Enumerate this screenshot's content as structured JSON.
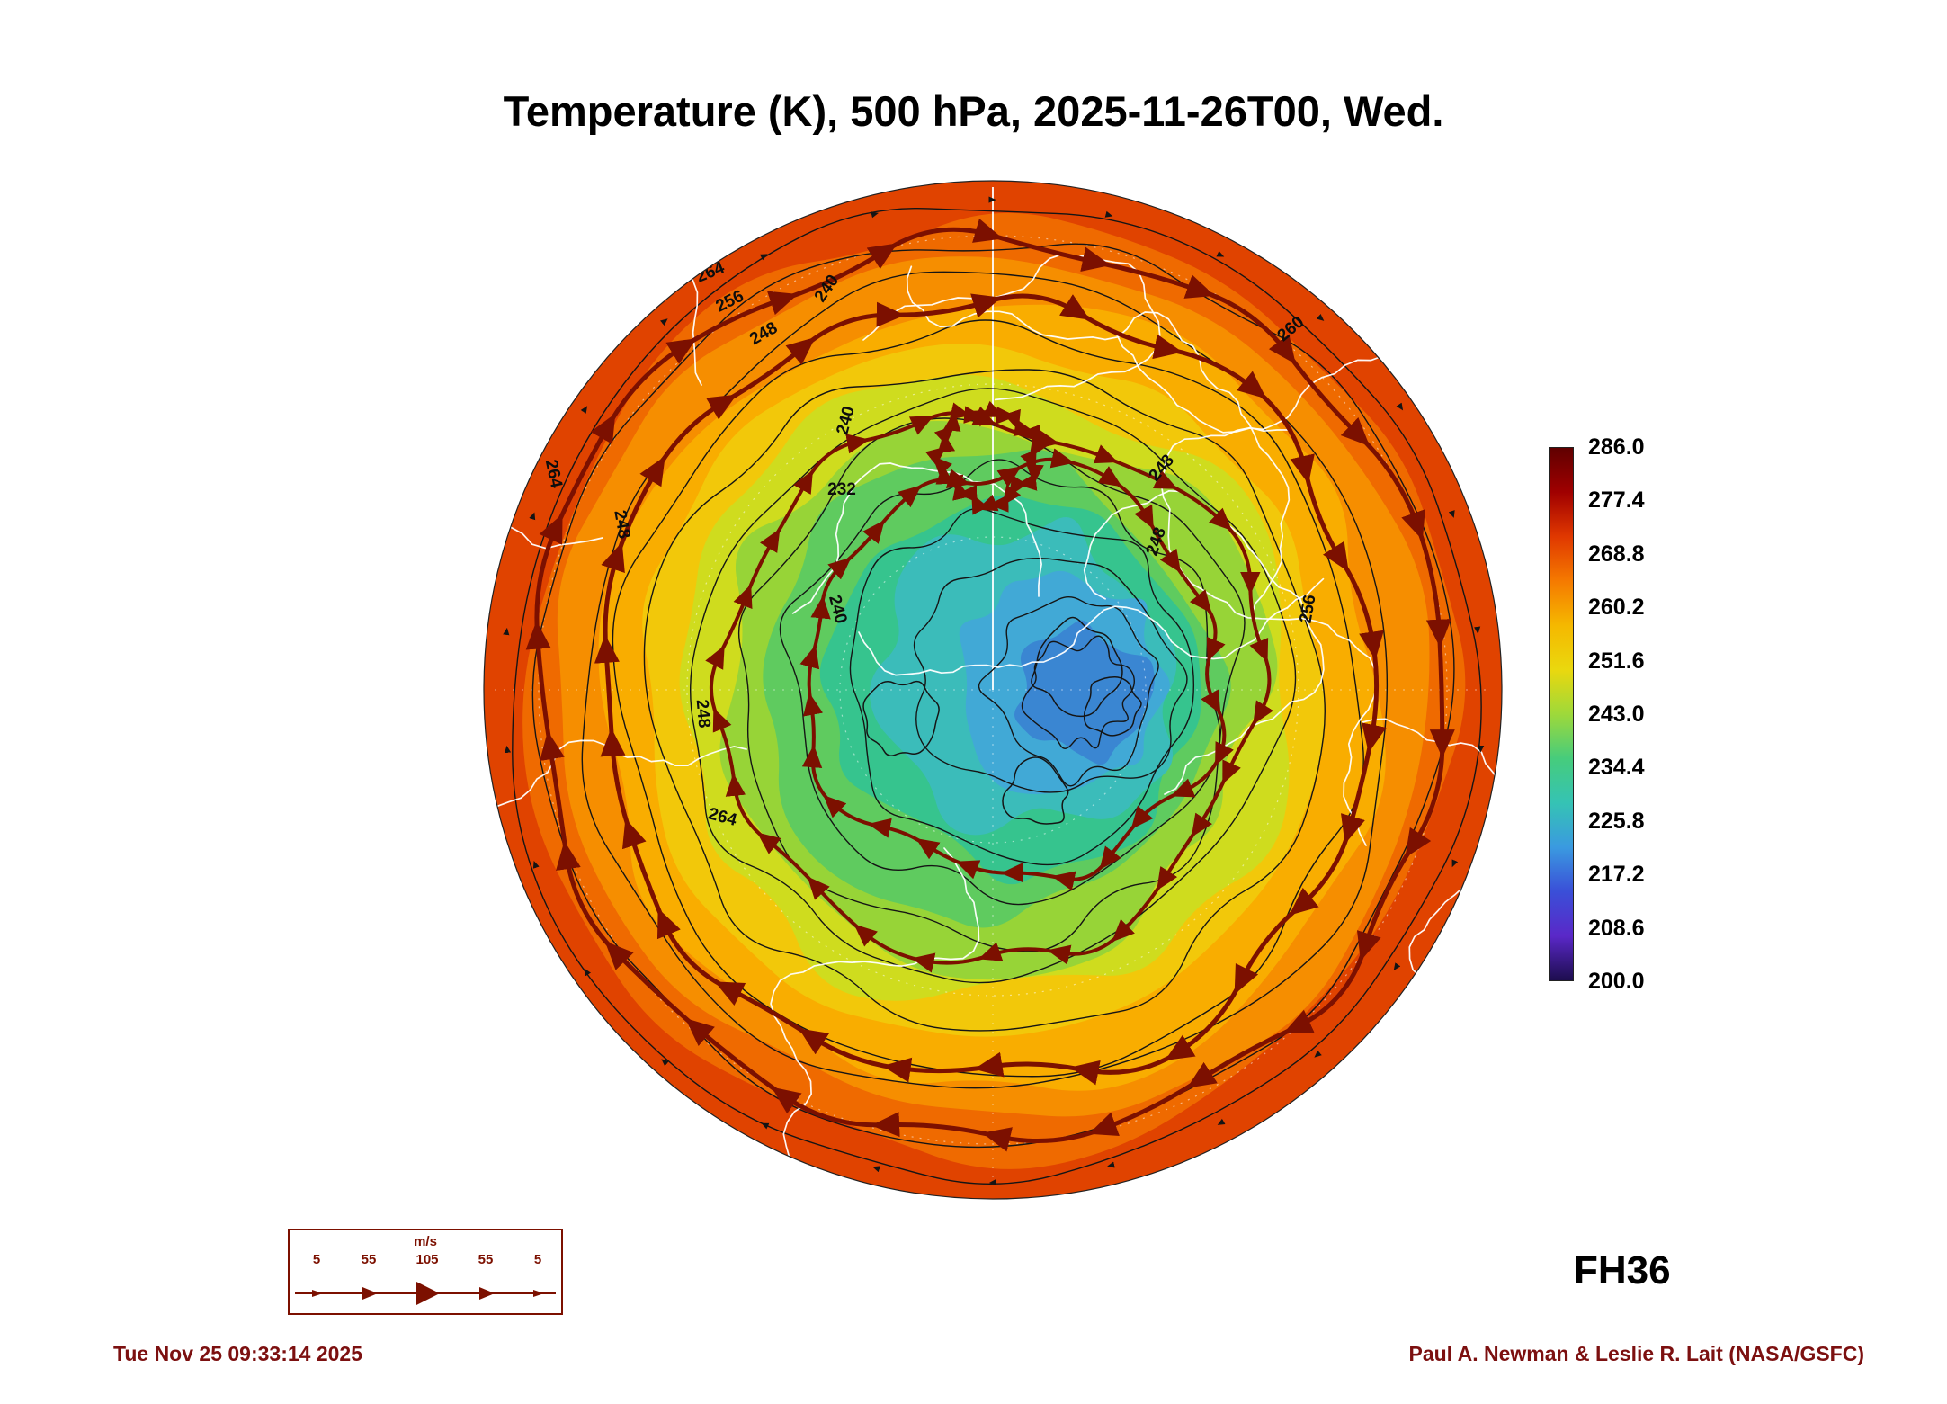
{
  "title": "Temperature (K), 500 hPa, 2025-11-26T00, Wed.",
  "forecast_label": "FH36",
  "footer": {
    "timestamp": "Tue Nov 25 09:33:14 2025",
    "credit": "Paul A. Newman & Leslie R. Lait (NASA/GSFC)"
  },
  "colorbar": {
    "ticks": [
      "286.0",
      "277.4",
      "268.8",
      "260.2",
      "251.6",
      "243.0",
      "234.4",
      "225.8",
      "217.2",
      "208.6",
      "200.0"
    ],
    "colors": [
      "#600000",
      "#a00000",
      "#e03800",
      "#f57a00",
      "#f5b800",
      "#ead80e",
      "#9ed93a",
      "#46cc7c",
      "#35c3b4",
      "#3a9ae0",
      "#3a4fd8",
      "#5a28c8",
      "#1d0d4e"
    ]
  },
  "wind_legend": {
    "unit": "m/s",
    "ticks": [
      "5",
      "55",
      "105",
      "55",
      "5"
    ]
  },
  "map": {
    "palette": [
      "#e04300",
      "#ef6a00",
      "#f68e00",
      "#f9ad00",
      "#f2c80a",
      "#cfdc1e",
      "#97d437",
      "#5fcb5f",
      "#36c48e",
      "#3bbcba",
      "#41a9d6",
      "#3a86d2"
    ],
    "contour_labels": [
      "264",
      "256",
      "248",
      "240",
      "260",
      "264",
      "248",
      "232",
      "240",
      "240",
      "248",
      "248",
      "256",
      "264",
      "248"
    ],
    "contour_line_color": "#7c1000",
    "coastline_color": "#ffffff"
  },
  "chart_data": {
    "type": "heatmap",
    "title": "Temperature (K), 500 hPa, 2025-11-26T00, Wed.",
    "projection": "north-polar-stereographic",
    "variable": "Temperature",
    "units": "K",
    "level": "500 hPa",
    "valid_time": "2025-11-26T00",
    "forecast_hour": 36,
    "colorbar_range": [
      200.0,
      286.0
    ],
    "colorbar_ticks": [
      286.0,
      277.4,
      268.8,
      260.2,
      251.6,
      243.0,
      234.4,
      225.8,
      217.2,
      208.6,
      200.0
    ],
    "contour_interval_K": 4,
    "labeled_contours_K": [
      232,
      240,
      248,
      256,
      260,
      264
    ],
    "wind_legend_scale_ms": [
      5,
      55,
      105,
      55,
      5
    ],
    "field_summary": "Cold pool near 216-232 K over the central Arctic (offset toward right of pole), surrounded by 232-248 K greens, with a warm 256-272 K orange-red ring at the map edge; dark red streamlines with arrowheads mark the circumpolar jet."
  }
}
